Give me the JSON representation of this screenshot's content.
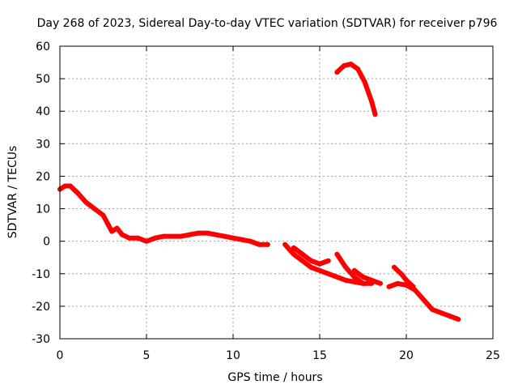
{
  "chart_data": {
    "type": "line",
    "title": "Day 268 of 2023, Sidereal Day-to-day VTEC variation (SDTVAR) for receiver p796",
    "xlabel": "GPS time / hours",
    "ylabel": "SDTVAR / TECUs",
    "xlim": [
      0,
      25
    ],
    "ylim": [
      -30,
      60
    ],
    "xticks": [
      0,
      5,
      10,
      15,
      20,
      25
    ],
    "yticks": [
      -30,
      -20,
      -10,
      0,
      10,
      20,
      30,
      40,
      50,
      60
    ],
    "grid": true,
    "color": "#ff0000",
    "series": [
      {
        "name": "main-trace",
        "x": [
          0.0,
          0.3,
          0.6,
          1.0,
          1.5,
          2.0,
          2.5,
          2.8,
          3.0,
          3.3,
          3.6,
          4.0,
          4.5,
          5.0,
          5.5,
          6.0,
          6.5,
          7.0,
          7.5,
          8.0,
          8.5,
          9.0,
          9.5,
          10.0,
          10.5,
          11.0,
          11.5,
          12.0
        ],
        "y": [
          16,
          17,
          17,
          15,
          12,
          10,
          8,
          5,
          3,
          4,
          2,
          1,
          1,
          0,
          1,
          1.5,
          1.5,
          1.5,
          2,
          2.5,
          2.5,
          2,
          1.5,
          1,
          0.5,
          0,
          -1,
          -1
        ]
      },
      {
        "name": "trace-13-18",
        "x": [
          13.0,
          13.5,
          14.0,
          14.5,
          15.0,
          15.5,
          16.0,
          16.5,
          17.0,
          17.5,
          18.0
        ],
        "y": [
          -1,
          -4,
          -6,
          -8,
          -9,
          -10,
          -11,
          -12,
          -12.5,
          -13,
          -13
        ]
      },
      {
        "name": "trace-upper-branch",
        "x": [
          13.5,
          14.0,
          14.5,
          15.0,
          15.5
        ],
        "y": [
          -2,
          -4,
          -6,
          -7,
          -6
        ]
      },
      {
        "name": "trace-branch-16",
        "x": [
          16.0,
          16.5,
          17.0,
          17.5
        ],
        "y": [
          -4,
          -8,
          -11,
          -13
        ]
      },
      {
        "name": "trace-branch-17",
        "x": [
          17.0,
          17.5,
          18.0,
          18.5
        ],
        "y": [
          -9,
          -11,
          -12,
          -13
        ]
      },
      {
        "name": "trace-19-23",
        "x": [
          19.0,
          19.5,
          20.0,
          20.5,
          21.0,
          21.5,
          22.0,
          22.5,
          23.0
        ],
        "y": [
          -14,
          -13,
          -13.5,
          -15,
          -18,
          -21,
          -22,
          -23,
          -24
        ]
      },
      {
        "name": "trace-19-upper",
        "x": [
          19.3,
          19.7,
          20.0,
          20.4
        ],
        "y": [
          -8,
          -10,
          -12,
          -14
        ]
      },
      {
        "name": "trace-high",
        "x": [
          16.0,
          16.4,
          16.8,
          17.2,
          17.6,
          18.0,
          18.2
        ],
        "y": [
          52,
          54,
          54.5,
          53,
          49,
          43,
          39
        ]
      }
    ]
  }
}
